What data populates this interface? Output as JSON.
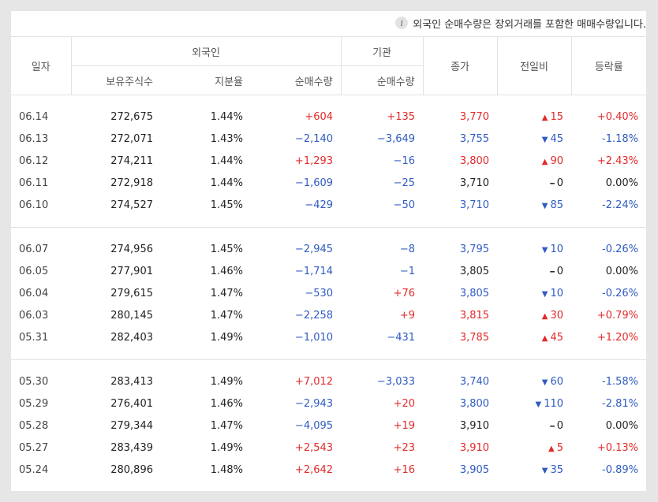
{
  "notice": "외국인 순매수량은 장외거래를 포함한 매매수량입니다.",
  "headers": {
    "date": "일자",
    "foreign": "외국인",
    "institution": "기관",
    "close": "종가",
    "change": "전일비",
    "rate": "등락률",
    "holdings": "보유주식수",
    "ratio": "지분율",
    "foreign_net": "순매수량",
    "inst_net": "순매수량"
  },
  "colors": {
    "up": "#e22a2a",
    "down": "#2f5bc2",
    "flat": "#222222"
  },
  "groups": [
    [
      {
        "date": "06.14",
        "holdings": "272,675",
        "ratio": "1.44%",
        "foreign_net": "+604",
        "inst_net": "+135",
        "close": "3,770",
        "change": "15",
        "dir": "up",
        "rate": "+0.40%"
      },
      {
        "date": "06.13",
        "holdings": "272,071",
        "ratio": "1.43%",
        "foreign_net": "−2,140",
        "inst_net": "−3,649",
        "close": "3,755",
        "change": "45",
        "dir": "down",
        "rate": "-1.18%"
      },
      {
        "date": "06.12",
        "holdings": "274,211",
        "ratio": "1.44%",
        "foreign_net": "+1,293",
        "inst_net": "−16",
        "close": "3,800",
        "change": "90",
        "dir": "up",
        "rate": "+2.43%"
      },
      {
        "date": "06.11",
        "holdings": "272,918",
        "ratio": "1.44%",
        "foreign_net": "−1,609",
        "inst_net": "−25",
        "close": "3,710",
        "change": "0",
        "dir": "flat",
        "rate": "0.00%"
      },
      {
        "date": "06.10",
        "holdings": "274,527",
        "ratio": "1.45%",
        "foreign_net": "−429",
        "inst_net": "−50",
        "close": "3,710",
        "change": "85",
        "dir": "down",
        "rate": "-2.24%"
      }
    ],
    [
      {
        "date": "06.07",
        "holdings": "274,956",
        "ratio": "1.45%",
        "foreign_net": "−2,945",
        "inst_net": "−8",
        "close": "3,795",
        "change": "10",
        "dir": "down",
        "rate": "-0.26%"
      },
      {
        "date": "06.05",
        "holdings": "277,901",
        "ratio": "1.46%",
        "foreign_net": "−1,714",
        "inst_net": "−1",
        "close": "3,805",
        "change": "0",
        "dir": "flat",
        "rate": "0.00%"
      },
      {
        "date": "06.04",
        "holdings": "279,615",
        "ratio": "1.47%",
        "foreign_net": "−530",
        "inst_net": "+76",
        "close": "3,805",
        "change": "10",
        "dir": "down",
        "rate": "-0.26%"
      },
      {
        "date": "06.03",
        "holdings": "280,145",
        "ratio": "1.47%",
        "foreign_net": "−2,258",
        "inst_net": "+9",
        "close": "3,815",
        "change": "30",
        "dir": "up",
        "rate": "+0.79%"
      },
      {
        "date": "05.31",
        "holdings": "282,403",
        "ratio": "1.49%",
        "foreign_net": "−1,010",
        "inst_net": "−431",
        "close": "3,785",
        "change": "45",
        "dir": "up",
        "rate": "+1.20%"
      }
    ],
    [
      {
        "date": "05.30",
        "holdings": "283,413",
        "ratio": "1.49%",
        "foreign_net": "+7,012",
        "inst_net": "−3,033",
        "close": "3,740",
        "change": "60",
        "dir": "down",
        "rate": "-1.58%"
      },
      {
        "date": "05.29",
        "holdings": "276,401",
        "ratio": "1.46%",
        "foreign_net": "−2,943",
        "inst_net": "+20",
        "close": "3,800",
        "change": "110",
        "dir": "down",
        "rate": "-2.81%"
      },
      {
        "date": "05.28",
        "holdings": "279,344",
        "ratio": "1.47%",
        "foreign_net": "−4,095",
        "inst_net": "+19",
        "close": "3,910",
        "change": "0",
        "dir": "flat",
        "rate": "0.00%"
      },
      {
        "date": "05.27",
        "holdings": "283,439",
        "ratio": "1.49%",
        "foreign_net": "+2,543",
        "inst_net": "+23",
        "close": "3,910",
        "change": "5",
        "dir": "up",
        "rate": "+0.13%"
      },
      {
        "date": "05.24",
        "holdings": "280,896",
        "ratio": "1.48%",
        "foreign_net": "+2,642",
        "inst_net": "+16",
        "close": "3,905",
        "change": "35",
        "dir": "down",
        "rate": "-0.89%"
      }
    ]
  ]
}
